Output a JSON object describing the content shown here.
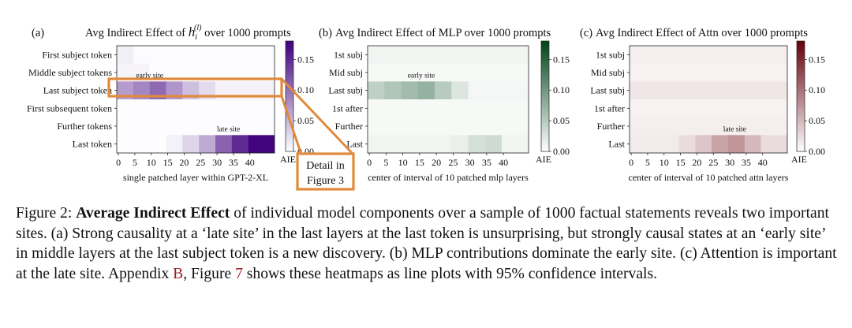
{
  "chart_data": [
    {
      "type": "heatmap",
      "panel_label": "(a)",
      "title": "Avg Indirect Effect of h_i^(l) over 1000 prompts",
      "title_parts": {
        "prefix": "Avg Indirect Effect of ",
        "var": "h",
        "sub": "i",
        "sup": "(l)",
        "suffix": " over 1000 prompts"
      },
      "xlabel": "single patched layer within GPT-2-XL",
      "ylabels": [
        "First subject token",
        "Middle subject tokens",
        "Last subject token",
        "First subsequent token",
        "Further tokens",
        "Last token"
      ],
      "xticks": [
        0,
        5,
        10,
        15,
        20,
        25,
        30,
        35,
        40
      ],
      "x_count": 48,
      "colorbar": {
        "min": 0,
        "max": 0.18,
        "ticks": [
          0.0,
          0.05,
          0.1,
          0.15
        ],
        "tick_labels": [
          "0.00",
          "0.05",
          "0.10",
          "0.15"
        ],
        "label": "AIE",
        "color": "#3f007d"
      },
      "rows": [
        {
          "segments": [
            {
              "x": [
                0,
                5
              ],
              "v": 0.012
            },
            {
              "x": [
                5,
                48
              ],
              "v": 0.003
            }
          ]
        },
        {
          "segments": [
            {
              "x": [
                0,
                10
              ],
              "v": 0.008
            },
            {
              "x": [
                10,
                48
              ],
              "v": 0.002
            }
          ]
        },
        {
          "segments": [
            {
              "x": [
                0,
                5
              ],
              "v": 0.07
            },
            {
              "x": [
                5,
                10
              ],
              "v": 0.085
            },
            {
              "x": [
                10,
                15
              ],
              "v": 0.105
            },
            {
              "x": [
                15,
                20
              ],
              "v": 0.075
            },
            {
              "x": [
                20,
                25
              ],
              "v": 0.045
            },
            {
              "x": [
                25,
                30
              ],
              "v": 0.025
            },
            {
              "x": [
                30,
                48
              ],
              "v": 0.01
            }
          ]
        },
        {
          "segments": [
            {
              "x": [
                0,
                48
              ],
              "v": 0.002
            }
          ]
        },
        {
          "segments": [
            {
              "x": [
                0,
                48
              ],
              "v": 0.002
            }
          ]
        },
        {
          "segments": [
            {
              "x": [
                0,
                15
              ],
              "v": 0.002
            },
            {
              "x": [
                15,
                20
              ],
              "v": 0.01
            },
            {
              "x": [
                20,
                25
              ],
              "v": 0.03
            },
            {
              "x": [
                25,
                30
              ],
              "v": 0.06
            },
            {
              "x": [
                30,
                35
              ],
              "v": 0.11
            },
            {
              "x": [
                35,
                40
              ],
              "v": 0.15
            },
            {
              "x": [
                40,
                48
              ],
              "v": 0.178
            }
          ]
        }
      ],
      "annotations": [
        {
          "text": "early site",
          "x": 10,
          "row": 2
        },
        {
          "text": "late site",
          "x": 34,
          "row": 5
        }
      ]
    },
    {
      "type": "heatmap",
      "panel_label": "(b)",
      "title": "Avg Indirect Effect of MLP over 1000 prompts",
      "xlabel": "center of interval of 10 patched mlp layers",
      "ylabels": [
        "1st subj",
        "Mid subj",
        "Last subj",
        "1st after",
        "Further",
        "Last"
      ],
      "xticks": [
        0,
        5,
        10,
        15,
        20,
        25,
        30,
        35,
        40
      ],
      "x_count": 48,
      "colorbar": {
        "min": 0,
        "max": 0.18,
        "ticks": [
          0.0,
          0.05,
          0.1,
          0.15
        ],
        "tick_labels": [
          "0.00",
          "0.05",
          "0.10",
          "0.15"
        ],
        "label": "AIE",
        "color": "#00441b"
      },
      "rows": [
        {
          "segments": [
            {
              "x": [
                0,
                48
              ],
              "v": 0.01
            }
          ]
        },
        {
          "segments": [
            {
              "x": [
                0,
                48
              ],
              "v": 0.006
            }
          ]
        },
        {
          "segments": [
            {
              "x": [
                0,
                5
              ],
              "v": 0.045
            },
            {
              "x": [
                5,
                10
              ],
              "v": 0.055
            },
            {
              "x": [
                10,
                15
              ],
              "v": 0.065
            },
            {
              "x": [
                15,
                20
              ],
              "v": 0.075
            },
            {
              "x": [
                20,
                25
              ],
              "v": 0.05
            },
            {
              "x": [
                25,
                30
              ],
              "v": 0.025
            },
            {
              "x": [
                30,
                48
              ],
              "v": 0.008
            }
          ]
        },
        {
          "segments": [
            {
              "x": [
                0,
                48
              ],
              "v": 0.006
            }
          ]
        },
        {
          "segments": [
            {
              "x": [
                0,
                48
              ],
              "v": 0.006
            }
          ]
        },
        {
          "segments": [
            {
              "x": [
                0,
                25
              ],
              "v": 0.01
            },
            {
              "x": [
                25,
                30
              ],
              "v": 0.015
            },
            {
              "x": [
                30,
                35
              ],
              "v": 0.03
            },
            {
              "x": [
                35,
                40
              ],
              "v": 0.035
            },
            {
              "x": [
                40,
                48
              ],
              "v": 0.01
            }
          ]
        }
      ],
      "annotations": [
        {
          "text": "early site",
          "x": 16,
          "row": 2
        }
      ]
    },
    {
      "type": "heatmap",
      "panel_label": "(c)",
      "title": "Avg Indirect Effect of Attn over 1000 prompts",
      "xlabel": "center of interval of 10 patched attn layers",
      "ylabels": [
        "1st subj",
        "Mid subj",
        "Last subj",
        "1st after",
        "Further",
        "Last"
      ],
      "xticks": [
        0,
        5,
        10,
        15,
        20,
        25,
        30,
        35,
        40
      ],
      "x_count": 48,
      "colorbar": {
        "min": 0,
        "max": 0.18,
        "ticks": [
          0.0,
          0.05,
          0.1,
          0.15
        ],
        "tick_labels": [
          "0.00",
          "0.05",
          "0.10",
          "0.15"
        ],
        "label": "AIE",
        "color": "#67000d"
      },
      "rows": [
        {
          "segments": [
            {
              "x": [
                0,
                48
              ],
              "v": 0.012
            }
          ]
        },
        {
          "segments": [
            {
              "x": [
                0,
                48
              ],
              "v": 0.01
            }
          ]
        },
        {
          "segments": [
            {
              "x": [
                0,
                48
              ],
              "v": 0.018
            }
          ]
        },
        {
          "segments": [
            {
              "x": [
                0,
                48
              ],
              "v": 0.01
            }
          ]
        },
        {
          "segments": [
            {
              "x": [
                0,
                48
              ],
              "v": 0.012
            }
          ]
        },
        {
          "segments": [
            {
              "x": [
                0,
                15
              ],
              "v": 0.015
            },
            {
              "x": [
                15,
                20
              ],
              "v": 0.025
            },
            {
              "x": [
                20,
                25
              ],
              "v": 0.04
            },
            {
              "x": [
                25,
                30
              ],
              "v": 0.065
            },
            {
              "x": [
                30,
                35
              ],
              "v": 0.075
            },
            {
              "x": [
                35,
                40
              ],
              "v": 0.05
            },
            {
              "x": [
                40,
                48
              ],
              "v": 0.025
            }
          ]
        }
      ],
      "annotations": [
        {
          "text": "late site",
          "x": 32,
          "row": 5
        }
      ]
    }
  ],
  "callout": {
    "line1": "Detail in",
    "line2": "Figure 3"
  },
  "caption": {
    "label": "Figure 2:",
    "bold": "Average Indirect Effect",
    "text1": " of individual model components over a sample of 1000 factual statements reveals two important sites. (a) Strong causality at a ‘late site’ in the last layers at the last token is unsurprising, but strongly causal states at an ‘early site’ in middle layers at the last subject token is a new discovery. (b) MLP contributions dominate the early site. (c) Attention is important at the late site. Appendix ",
    "ref1": "B",
    "text2": ", Figure ",
    "ref2": "7",
    "text3": " shows these heatmaps as line plots with 95% confidence intervals."
  }
}
